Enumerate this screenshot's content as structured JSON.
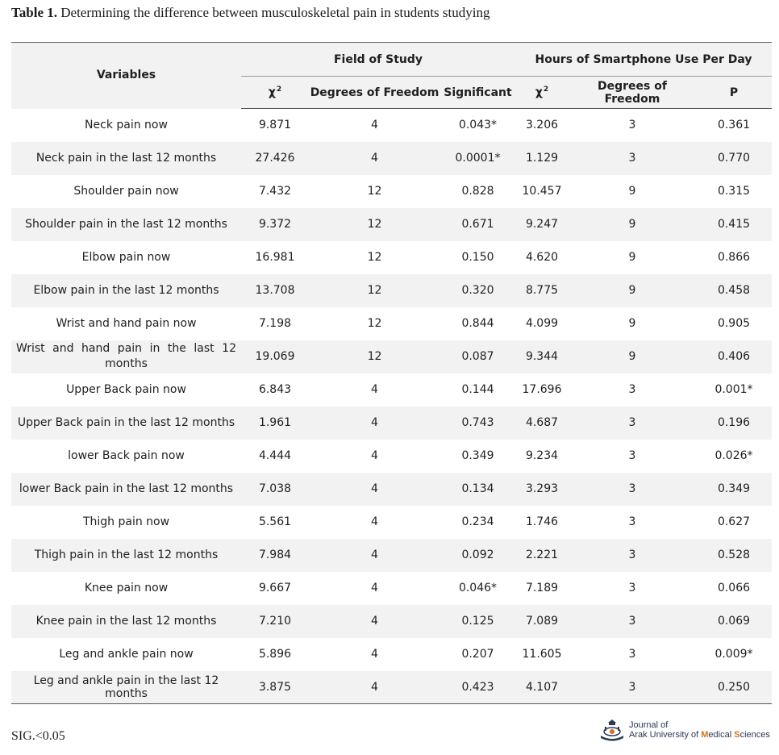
{
  "caption": {
    "label": "Table 1.",
    "text": " Determining the difference between musculoskeletal pain in students studying"
  },
  "table": {
    "header": {
      "variables": "Variables",
      "group_field": "Field of Study",
      "group_hours": "Hours of Smartphone Use Per Day",
      "chi": "χ",
      "chi_sup": "2",
      "dof": "Degrees of Freedom",
      "significant": "Significant",
      "p": "P"
    },
    "rows": [
      {
        "variable": "Neck pain now",
        "f_chi": "9.871",
        "f_dof": "4",
        "f_sig": "0.043*",
        "h_chi": "3.206",
        "h_dof": "3",
        "h_p": "0.361"
      },
      {
        "variable": "Neck pain in the last 12 months",
        "f_chi": "27.426",
        "f_dof": "4",
        "f_sig": "0.0001*",
        "h_chi": "1.129",
        "h_dof": "3",
        "h_p": "0.770"
      },
      {
        "variable": "Shoulder pain now",
        "f_chi": "7.432",
        "f_dof": "12",
        "f_sig": "0.828",
        "h_chi": "10.457",
        "h_dof": "9",
        "h_p": "0.315"
      },
      {
        "variable": "Shoulder pain in the last 12 months",
        "f_chi": "9.372",
        "f_dof": "12",
        "f_sig": "0.671",
        "h_chi": "9.247",
        "h_dof": "9",
        "h_p": "0.415"
      },
      {
        "variable": "Elbow pain now",
        "f_chi": "16.981",
        "f_dof": "12",
        "f_sig": "0.150",
        "h_chi": "4.620",
        "h_dof": "9",
        "h_p": "0.866"
      },
      {
        "variable": "Elbow pain in the last 12 months",
        "f_chi": "13.708",
        "f_dof": "12",
        "f_sig": "0.320",
        "h_chi": "8.775",
        "h_dof": "9",
        "h_p": "0.458"
      },
      {
        "variable": "Wrist and hand pain now",
        "f_chi": "7.198",
        "f_dof": "12",
        "f_sig": "0.844",
        "h_chi": "4.099",
        "h_dof": "9",
        "h_p": "0.905"
      },
      {
        "variable": "Wrist and hand pain in the last 12 months",
        "f_chi": "19.069",
        "f_dof": "12",
        "f_sig": "0.087",
        "h_chi": "9.344",
        "h_dof": "9",
        "h_p": "0.406"
      },
      {
        "variable": "Upper Back pain now",
        "f_chi": "6.843",
        "f_dof": "4",
        "f_sig": "0.144",
        "h_chi": "17.696",
        "h_dof": "3",
        "h_p": "0.001*"
      },
      {
        "variable": "Upper Back pain in the last 12 months",
        "f_chi": "1.961",
        "f_dof": "4",
        "f_sig": "0.743",
        "h_chi": "4.687",
        "h_dof": "3",
        "h_p": "0.196"
      },
      {
        "variable": "lower Back pain now",
        "f_chi": "4.444",
        "f_dof": "4",
        "f_sig": "0.349",
        "h_chi": "9.234",
        "h_dof": "3",
        "h_p": "0.026*"
      },
      {
        "variable": "lower Back pain in the last 12 months",
        "f_chi": "7.038",
        "f_dof": "4",
        "f_sig": "0.134",
        "h_chi": "3.293",
        "h_dof": "3",
        "h_p": "0.349"
      },
      {
        "variable": "Thigh pain now",
        "f_chi": "5.561",
        "f_dof": "4",
        "f_sig": "0.234",
        "h_chi": "1.746",
        "h_dof": "3",
        "h_p": "0.627"
      },
      {
        "variable": "Thigh pain in the last 12 months",
        "f_chi": "7.984",
        "f_dof": "4",
        "f_sig": "0.092",
        "h_chi": "2.221",
        "h_dof": "3",
        "h_p": "0.528"
      },
      {
        "variable": "Knee pain now",
        "f_chi": "9.667",
        "f_dof": "4",
        "f_sig": "0.046*",
        "h_chi": "7.189",
        "h_dof": "3",
        "h_p": "0.066"
      },
      {
        "variable": "Knee pain in the last 12 months",
        "f_chi": "7.210",
        "f_dof": "4",
        "f_sig": "0.125",
        "h_chi": "7.089",
        "h_dof": "3",
        "h_p": "0.069"
      },
      {
        "variable": "Leg and ankle pain now",
        "f_chi": "5.896",
        "f_dof": "4",
        "f_sig": "0.207",
        "h_chi": "11.605",
        "h_dof": "3",
        "h_p": "0.009*"
      },
      {
        "variable": "Leg and ankle pain in the last 12 months",
        "f_chi": "3.875",
        "f_dof": "4",
        "f_sig": "0.423",
        "h_chi": "4.107",
        "h_dof": "3",
        "h_p": "0.250"
      }
    ]
  },
  "footnote": "SIG.<0.05",
  "journal": {
    "line1": "Journal of",
    "line2_prefix": "Arak University of ",
    "line2_m": "M",
    "line2_mid": "edical ",
    "line2_s": "S",
    "line2_suffix": "ciences",
    "logo_icon": "journal-logo-icon",
    "accent": "#d4711c",
    "color": "#2b3a55"
  }
}
